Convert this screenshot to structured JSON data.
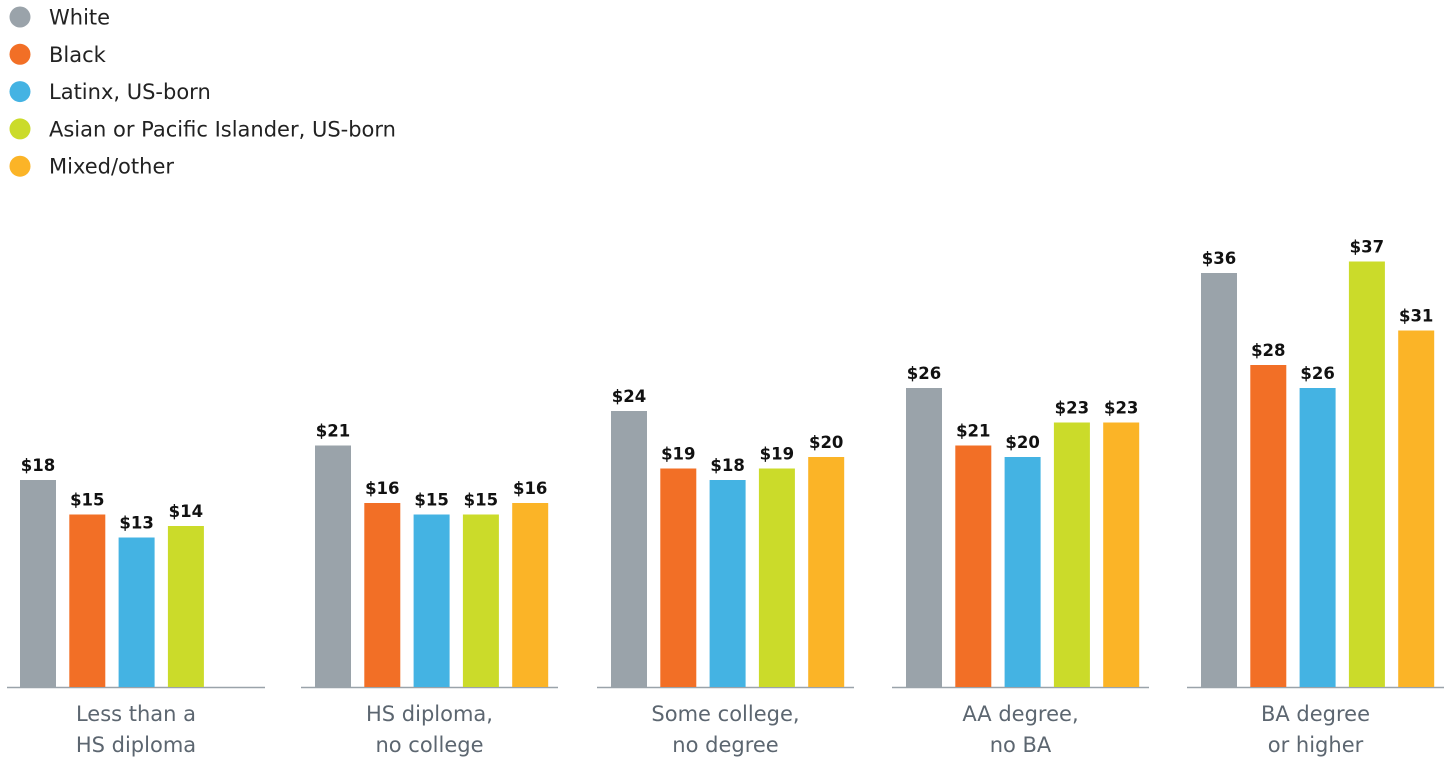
{
  "chart_data": {
    "type": "bar",
    "title": "",
    "xlabel": "",
    "ylabel": "",
    "categories": [
      [
        "Less than a",
        "HS diploma"
      ],
      [
        "HS diploma,",
        "no college"
      ],
      [
        "Some college,",
        "no degree"
      ],
      [
        "AA degree,",
        "no BA"
      ],
      [
        "BA degree",
        "or higher"
      ]
    ],
    "series": [
      {
        "name": "White",
        "color": "#9aa3aa",
        "values": [
          18,
          21,
          24,
          26,
          36
        ]
      },
      {
        "name": "Black",
        "color": "#f26f26",
        "values": [
          15,
          16,
          19,
          21,
          28
        ]
      },
      {
        "name": "Latinx, US-born",
        "color": "#44b3e3",
        "values": [
          13,
          15,
          18,
          20,
          26
        ]
      },
      {
        "name": "Asian or Pacific Islander, US-born",
        "color": "#cbdb2a",
        "values": [
          14,
          15,
          19,
          23,
          37
        ]
      },
      {
        "name": "Mixed/other",
        "color": "#fbb427",
        "values": [
          null,
          16,
          20,
          23,
          31
        ]
      }
    ],
    "value_prefix": "$",
    "ylim": [
      0,
      40
    ],
    "grid": false,
    "legend": "top-left",
    "axis_color": "#9aa3aa"
  }
}
